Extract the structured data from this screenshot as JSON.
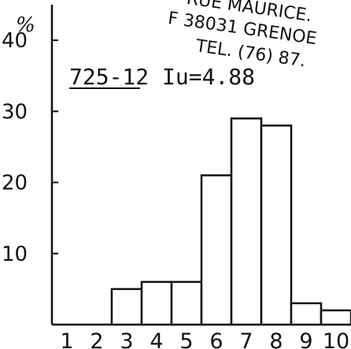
{
  "chart_data": {
    "type": "bar",
    "title": "",
    "xlabel": "",
    "ylabel": "%",
    "categories": [
      "1",
      "2",
      "3",
      "4",
      "5",
      "6",
      "7",
      "8",
      "9",
      "10"
    ],
    "values": [
      0,
      0,
      5,
      6,
      6,
      21,
      29,
      28,
      3,
      2
    ],
    "ylim": [
      0,
      45
    ],
    "yticks": [
      "10",
      "20",
      "30",
      "40"
    ],
    "grid": false,
    "annotation": "725-12 Iu=4.88",
    "stamp_lines": [
      "RUE MAURICE.",
      "F 38031 GRENOE",
      "TEL. (76) 87."
    ]
  }
}
